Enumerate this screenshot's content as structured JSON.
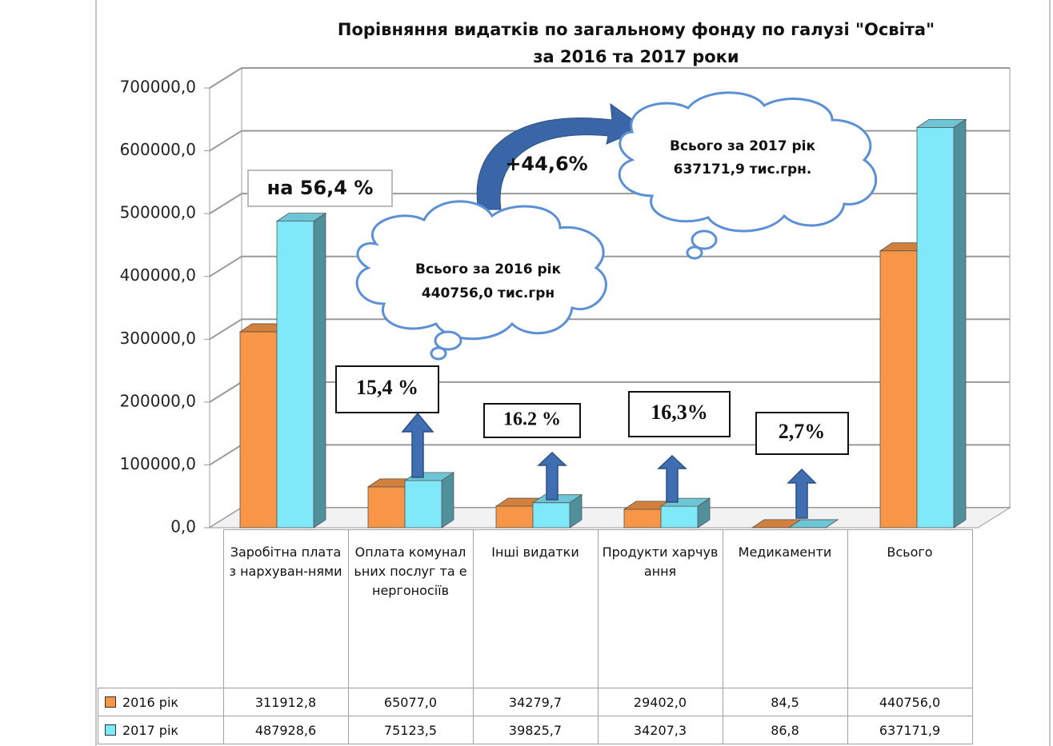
{
  "chart_data": {
    "type": "bar3d",
    "title": "Порівняння видатків по загальному фонду по галузі \"Освіта\"",
    "subtitle": "за   2016 та 2017 роки",
    "categories": [
      "Заробітна плата з нархуван-нями",
      "Оплата комунальних послуг та енергоносіїв",
      "Інші видатки",
      "Продукти харчування",
      "Медикаменти",
      "Всього"
    ],
    "series": [
      {
        "name": "2016 рік",
        "color": "#f79646",
        "values": [
          311912.8,
          65077.0,
          34279.7,
          29402.0,
          84.5,
          440756.0
        ],
        "value_labels": [
          "311912,8",
          "65077,0",
          "34279,7",
          "29402,0",
          "84,5",
          "440756,0"
        ]
      },
      {
        "name": "2017 рік",
        "color": "#7fe9fa",
        "values": [
          487928.6,
          75123.5,
          39825.7,
          34207.3,
          86.8,
          637171.9
        ],
        "value_labels": [
          "487928,6",
          "75123,5",
          "39825,7",
          "34207,3",
          "86,8",
          "637171,9"
        ]
      }
    ],
    "ylim": [
      0,
      700000
    ],
    "yticks": [
      {
        "value": 0,
        "label": "0,0"
      },
      {
        "value": 100000,
        "label": "100000,0"
      },
      {
        "value": 200000,
        "label": "200000,0"
      },
      {
        "value": 300000,
        "label": "300000,0"
      },
      {
        "value": 400000,
        "label": "400000,0"
      },
      {
        "value": 500000,
        "label": "500000,0"
      },
      {
        "value": 600000,
        "label": "600000,0"
      },
      {
        "value": 700000,
        "label": "700000,0"
      }
    ],
    "grid": true,
    "annotations": [
      "на 56,4 %",
      "15,4 %",
      "16.2 %",
      "16,3%",
      "2,7%",
      "+44,6%",
      "Всього за  2016 рік",
      "440756,0 тис.грн",
      "Всього за  2017 рік",
      "637171,9 тис.грн."
    ]
  }
}
